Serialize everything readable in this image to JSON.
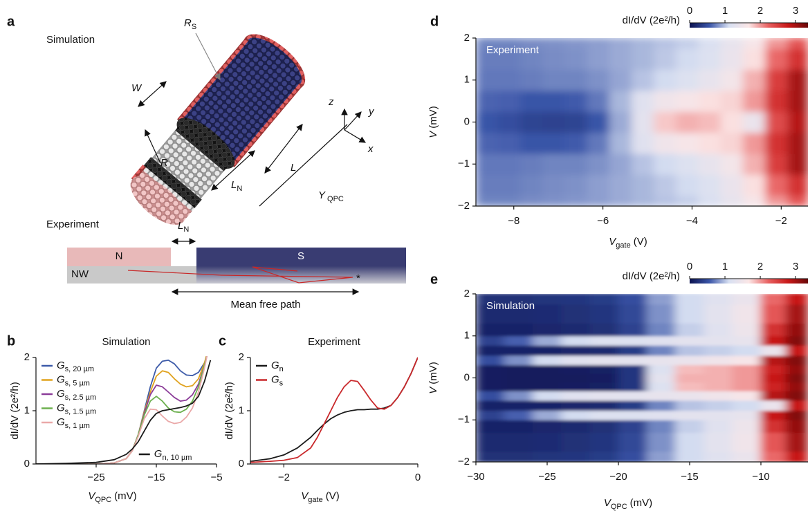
{
  "panel_labels": [
    "a",
    "b",
    "c",
    "d",
    "e"
  ],
  "schematic": {
    "simulation_label": "Simulation",
    "experiment_label": "Experiment",
    "labels": [
      {
        "main": "R",
        "sub": "S"
      },
      {
        "main": "W"
      },
      {
        "main": "R"
      },
      {
        "main": "L"
      },
      {
        "main": "L",
        "sub": "N"
      },
      {
        "main": "Y",
        "sub": "QPC"
      },
      {
        "main": "z"
      },
      {
        "main": "y"
      },
      {
        "main": "x"
      }
    ],
    "experiment": {
      "gap": {
        "main": "L",
        "sub": "N"
      },
      "n": "N",
      "s": "S",
      "nw": "NW",
      "mean_free_path": "Mean free path"
    }
  },
  "chart_data": [
    {
      "type": "line",
      "title": "Simulation",
      "xlabel": {
        "main": "V",
        "sub": "QPC",
        "unit": "(mV)"
      },
      "ylabel": "dI/dV (2e²/h)",
      "x": [
        -35,
        -30,
        -25,
        -22,
        -20,
        -19,
        -18,
        -17,
        -16,
        -15,
        -14,
        -13,
        -12,
        -11,
        -10,
        -9,
        -8,
        -7,
        -6
      ],
      "xlim": [
        -35,
        -5
      ],
      "xticks": [
        {
          "value": -25,
          "label": "−25"
        },
        {
          "value": -15,
          "label": "−15"
        },
        {
          "value": -5,
          "label": "−5"
        }
      ],
      "ylim": [
        0,
        2
      ],
      "yticks": [
        0,
        1,
        2
      ],
      "legend_loc": "upper left",
      "series": [
        {
          "name": {
            "main": "G",
            "sub": "s, 20 µm"
          },
          "color": "#3d5ba9",
          "values": [
            0,
            0,
            0,
            0.02,
            0.1,
            0.25,
            0.55,
            1.0,
            1.45,
            1.8,
            1.93,
            1.95,
            1.88,
            1.75,
            1.67,
            1.66,
            1.72,
            1.9,
            2.2
          ]
        },
        {
          "name": {
            "main": "G",
            "sub": "s, 5 µm"
          },
          "color": "#e0a21e",
          "values": [
            0,
            0,
            0,
            0.02,
            0.1,
            0.25,
            0.55,
            0.98,
            1.35,
            1.65,
            1.75,
            1.72,
            1.6,
            1.5,
            1.45,
            1.47,
            1.6,
            1.9,
            2.3
          ]
        },
        {
          "name": {
            "main": "G",
            "sub": "s, 2.5 µm"
          },
          "color": "#8b3c98",
          "values": [
            0,
            0,
            0,
            0.02,
            0.1,
            0.25,
            0.55,
            0.95,
            1.3,
            1.48,
            1.45,
            1.35,
            1.25,
            1.18,
            1.2,
            1.3,
            1.5,
            1.85,
            2.3
          ]
        },
        {
          "name": {
            "main": "G",
            "sub": "s, 1.5 µm"
          },
          "color": "#6cb04e",
          "values": [
            0,
            0,
            0,
            0.02,
            0.1,
            0.25,
            0.55,
            0.92,
            1.18,
            1.27,
            1.18,
            1.05,
            0.98,
            0.97,
            1.03,
            1.18,
            1.45,
            1.85,
            2.3
          ]
        },
        {
          "name": {
            "main": "G",
            "sub": "s, 1 µm"
          },
          "color": "#eaa8a8",
          "values": [
            0,
            0,
            0,
            0.02,
            0.1,
            0.25,
            0.52,
            0.85,
            1.03,
            1.02,
            0.9,
            0.8,
            0.76,
            0.78,
            0.88,
            1.05,
            1.35,
            1.8,
            2.35
          ]
        },
        {
          "name": {
            "main": "G",
            "sub": "n, 10 µm"
          },
          "color": "#1a1a1a",
          "legend_loc": "lower right",
          "values": [
            0,
            0.01,
            0.03,
            0.08,
            0.18,
            0.28,
            0.42,
            0.62,
            0.82,
            0.95,
            1.0,
            1.02,
            1.04,
            1.06,
            1.09,
            1.14,
            1.27,
            1.55,
            1.95
          ]
        }
      ]
    },
    {
      "type": "line",
      "title": "Experiment",
      "xlabel": {
        "main": "V",
        "sub": "gate",
        "unit": "(V)"
      },
      "ylabel": "dI/dV (2e²/h)",
      "x": [
        -2.5,
        -2.2,
        -2,
        -1.8,
        -1.6,
        -1.5,
        -1.4,
        -1.3,
        -1.2,
        -1.1,
        -1,
        -0.9,
        -0.8,
        -0.7,
        -0.6,
        -0.5,
        -0.4,
        -0.3,
        -0.2,
        -0.1,
        0
      ],
      "xlim": [
        -2.5,
        0
      ],
      "xticks": [
        {
          "value": -2,
          "label": "−2"
        },
        0
      ],
      "ylim": [
        0,
        2
      ],
      "yticks": [
        0,
        1,
        2
      ],
      "legend_loc": "upper left",
      "series": [
        {
          "name": {
            "main": "G",
            "sub": "n"
          },
          "color": "#1a1a1a",
          "values": [
            0.05,
            0.1,
            0.17,
            0.3,
            0.5,
            0.63,
            0.75,
            0.85,
            0.92,
            0.97,
            1.0,
            1.02,
            1.02,
            1.03,
            1.03,
            1.05,
            1.1,
            1.25,
            1.45,
            1.7,
            2.0
          ]
        },
        {
          "name": {
            "main": "G",
            "sub": "s"
          },
          "color": "#c9282b",
          "values": [
            0.03,
            0.05,
            0.07,
            0.12,
            0.3,
            0.5,
            0.75,
            1.0,
            1.25,
            1.45,
            1.57,
            1.55,
            1.38,
            1.2,
            1.05,
            1.03,
            1.1,
            1.25,
            1.45,
            1.7,
            2.0
          ]
        }
      ]
    },
    {
      "type": "heatmap",
      "label": "Experiment",
      "xlabel": {
        "main": "V",
        "sub": "gate",
        "unit": "(V)"
      },
      "ylabel": {
        "main": "V",
        "unit": "(mV)"
      },
      "colorbar_label": "dI/dV (2e²/h)",
      "x": [
        -8.6,
        -8.1,
        -7.6,
        -7.1,
        -6.6,
        -6.1,
        -5.6,
        -5.1,
        -4.6,
        -4.1,
        -3.6,
        -3.1,
        -2.6,
        -2.1,
        -1.6
      ],
      "y": [
        -2,
        -1.5,
        -1,
        -0.5,
        0,
        0.5,
        1,
        1.5,
        2
      ],
      "z": [
        [
          0.75,
          0.75,
          0.78,
          0.8,
          0.82,
          0.85,
          0.9,
          0.95,
          1.0,
          1.05,
          1.15,
          1.35,
          1.6,
          2.0,
          2.3
        ],
        [
          0.72,
          0.72,
          0.75,
          0.78,
          0.8,
          0.85,
          0.9,
          0.95,
          1.02,
          1.1,
          1.2,
          1.4,
          1.7,
          2.2,
          2.6
        ],
        [
          0.7,
          0.7,
          0.72,
          0.75,
          0.75,
          0.8,
          0.88,
          1.0,
          1.1,
          1.2,
          1.35,
          1.55,
          1.9,
          2.5,
          3.0
        ],
        [
          0.62,
          0.6,
          0.55,
          0.55,
          0.58,
          0.7,
          0.95,
          1.25,
          1.5,
          1.6,
          1.7,
          1.75,
          2.0,
          2.6,
          3.0
        ],
        [
          0.55,
          0.5,
          0.42,
          0.4,
          0.42,
          0.55,
          0.9,
          1.3,
          1.8,
          1.9,
          1.85,
          1.7,
          1.4,
          2.4,
          2.9
        ],
        [
          0.62,
          0.6,
          0.55,
          0.55,
          0.58,
          0.7,
          0.95,
          1.25,
          1.5,
          1.6,
          1.7,
          1.75,
          2.0,
          2.6,
          3.0
        ],
        [
          0.7,
          0.7,
          0.72,
          0.75,
          0.75,
          0.8,
          0.88,
          1.0,
          1.1,
          1.2,
          1.35,
          1.55,
          1.9,
          2.5,
          3.0
        ],
        [
          0.72,
          0.72,
          0.75,
          0.78,
          0.8,
          0.85,
          0.9,
          0.95,
          1.02,
          1.1,
          1.2,
          1.4,
          1.7,
          2.2,
          2.6
        ],
        [
          0.75,
          0.75,
          0.78,
          0.8,
          0.82,
          0.85,
          0.9,
          0.95,
          1.0,
          1.05,
          1.15,
          1.35,
          1.6,
          2.0,
          2.3
        ]
      ],
      "xlim": [
        -8.85,
        -1.4
      ],
      "xticks": [
        {
          "value": -8,
          "label": "−8"
        },
        {
          "value": -6,
          "label": "−6"
        },
        {
          "value": -4,
          "label": "−4"
        },
        {
          "value": -2,
          "label": "−2"
        }
      ],
      "ylim": [
        -2,
        2
      ],
      "yticks": [
        {
          "value": -2,
          "label": "−2"
        },
        {
          "value": -1,
          "label": "−1"
        },
        0,
        1,
        2
      ],
      "clim": [
        0,
        3.35
      ],
      "cticks": [
        0,
        1,
        2,
        3
      ],
      "colormap": [
        "#0b1250",
        "#3a55a8",
        "#d8e0f2",
        "#fbe6e6",
        "#e86060",
        "#c81818",
        "#6a0808"
      ]
    },
    {
      "type": "heatmap",
      "label": "Simulation",
      "xlabel": {
        "main": "V",
        "sub": "QPC",
        "unit": "(mV)"
      },
      "ylabel": {
        "main": "V",
        "unit": "(mV)"
      },
      "colorbar_label": "dI/dV (2e²/h)",
      "x": [
        -29,
        -27,
        -25,
        -23,
        -21,
        -19,
        -17,
        -15,
        -13,
        -11,
        -9,
        -7.5
      ],
      "y": [
        -2,
        -1.5,
        -1.1,
        -0.9,
        -0.65,
        -0.42,
        -0.2,
        0,
        0.2,
        0.42,
        0.65,
        0.9,
        1.1,
        1.5,
        2
      ],
      "z": [
        [
          0.25,
          0.25,
          0.28,
          0.3,
          0.35,
          0.5,
          0.85,
          1.1,
          1.25,
          1.4,
          2.2,
          2.8
        ],
        [
          0.2,
          0.2,
          0.22,
          0.25,
          0.3,
          0.45,
          0.8,
          1.1,
          1.3,
          1.5,
          2.3,
          3.0
        ],
        [
          0.15,
          0.15,
          0.18,
          0.2,
          0.25,
          0.4,
          0.75,
          1.05,
          1.25,
          1.45,
          2.6,
          3.1
        ],
        [
          0.4,
          0.6,
          0.9,
          1.1,
          1.2,
          1.2,
          1.25,
          1.3,
          1.3,
          1.35,
          2.8,
          3.2
        ],
        [
          0.15,
          0.15,
          0.15,
          0.18,
          0.2,
          0.35,
          0.75,
          1.0,
          1.05,
          1.1,
          1.4,
          2.8
        ],
        [
          0.5,
          0.8,
          1.1,
          1.25,
          1.3,
          1.3,
          1.35,
          1.4,
          1.5,
          1.6,
          2.9,
          3.2
        ],
        [
          0.1,
          0.08,
          0.08,
          0.1,
          0.12,
          0.3,
          1.2,
          1.85,
          1.9,
          2.0,
          2.7,
          3.1
        ],
        [
          0.1,
          0.08,
          0.08,
          0.08,
          0.1,
          0.3,
          1.3,
          1.9,
          1.9,
          2.0,
          2.8,
          3.2
        ],
        [
          0.1,
          0.08,
          0.08,
          0.1,
          0.12,
          0.3,
          1.2,
          1.85,
          1.9,
          2.0,
          2.7,
          3.1
        ],
        [
          0.5,
          0.8,
          1.1,
          1.25,
          1.3,
          1.3,
          1.35,
          1.4,
          1.5,
          1.6,
          2.9,
          3.2
        ],
        [
          0.15,
          0.15,
          0.15,
          0.18,
          0.2,
          0.35,
          0.75,
          1.0,
          1.05,
          1.1,
          1.4,
          2.8
        ],
        [
          0.4,
          0.6,
          0.9,
          1.1,
          1.2,
          1.2,
          1.25,
          1.3,
          1.3,
          1.35,
          2.8,
          3.2
        ],
        [
          0.15,
          0.15,
          0.18,
          0.2,
          0.25,
          0.4,
          0.75,
          1.05,
          1.25,
          1.45,
          2.6,
          3.1
        ],
        [
          0.2,
          0.2,
          0.22,
          0.25,
          0.3,
          0.45,
          0.8,
          1.1,
          1.3,
          1.5,
          2.3,
          3.0
        ],
        [
          0.25,
          0.25,
          0.28,
          0.3,
          0.35,
          0.5,
          0.85,
          1.1,
          1.25,
          1.4,
          2.2,
          2.8
        ]
      ],
      "xlim": [
        -30,
        -6.7
      ],
      "xticks": [
        {
          "value": -30,
          "label": "−30"
        },
        {
          "value": -25,
          "label": "−25"
        },
        {
          "value": -20,
          "label": "−20"
        },
        {
          "value": -15,
          "label": "−15"
        },
        {
          "value": -10,
          "label": "−10"
        }
      ],
      "ylim": [
        -2,
        2
      ],
      "yticks": [
        {
          "value": -2,
          "label": "−2"
        },
        {
          "value": -1,
          "label": "−1"
        },
        0,
        1,
        2
      ],
      "clim": [
        0,
        3.35
      ],
      "cticks": [
        0,
        1,
        2,
        3
      ],
      "colormap": [
        "#0b1250",
        "#3a55a8",
        "#d8e0f2",
        "#fbe6e6",
        "#e86060",
        "#c81818",
        "#6a0808"
      ]
    }
  ]
}
